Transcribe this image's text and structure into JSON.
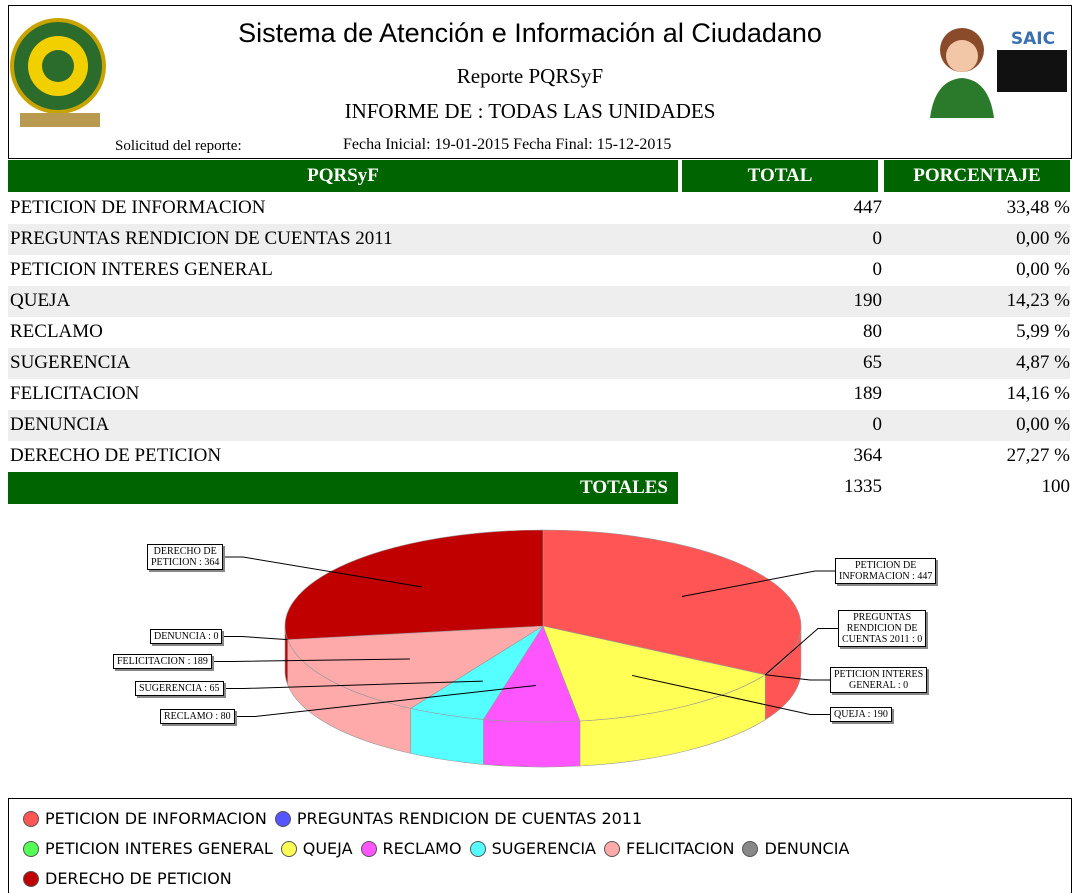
{
  "header": {
    "title": "Sistema de Atención e Información al Ciudadano",
    "subtitle": "Reporte PQRSyF",
    "scope": "INFORME DE : TODAS LAS UNIDADES",
    "request_label": "Solicitud del reporte:",
    "dates": "Fecha Inicial: 19-01-2015 Fecha Final: 15-12-2015",
    "saic": "SAIC"
  },
  "table": {
    "columns": [
      "PQRSyF",
      "TOTAL",
      "PORCENTAJE"
    ],
    "rows": [
      [
        "PETICION DE INFORMACION",
        447,
        "33,48 %"
      ],
      [
        "PREGUNTAS RENDICION DE CUENTAS 2011",
        0,
        "0,00 %"
      ],
      [
        "PETICION INTERES GENERAL",
        0,
        "0,00 %"
      ],
      [
        "QUEJA",
        190,
        "14,23 %"
      ],
      [
        "RECLAMO",
        80,
        "5,99 %"
      ],
      [
        "SUGERENCIA",
        65,
        "4,87 %"
      ],
      [
        "FELICITACION",
        189,
        "14,16 %"
      ],
      [
        "DENUNCIA",
        0,
        "0,00 %"
      ],
      [
        "DERECHO DE PETICION",
        364,
        "27,27 %"
      ]
    ],
    "totals_label": "TOTALES",
    "total": 1335,
    "percent_total": 100
  },
  "chart": {
    "type": "pie",
    "labels": [
      "PETICION DE\nINFORMACION : 447",
      "PREGUNTAS\nRENDICION DE\nCUENTAS 2011 : 0",
      "PETICION INTERES\nGENERAL : 0",
      "QUEJA : 190",
      "RECLAMO : 80",
      "SUGERENCIA : 65",
      "FELICITACION : 189",
      "DENUNCIA : 0",
      "DERECHO DE\nPETICION : 364"
    ],
    "legend": [
      {
        "name": "PETICION DE INFORMACION",
        "color": "#ff5555"
      },
      {
        "name": "PREGUNTAS RENDICION DE CUENTAS 2011",
        "color": "#5555ff"
      },
      {
        "name": "PETICION INTERES GENERAL",
        "color": "#55ff55"
      },
      {
        "name": "QUEJA",
        "color": "#ffff55"
      },
      {
        "name": "RECLAMO",
        "color": "#ff55ff"
      },
      {
        "name": "SUGERENCIA",
        "color": "#55ffff"
      },
      {
        "name": "FELICITACION",
        "color": "#ffaaaa"
      },
      {
        "name": "DENUNCIA",
        "color": "#888888"
      },
      {
        "name": "DERECHO DE PETICION",
        "color": "#c00000"
      }
    ]
  }
}
